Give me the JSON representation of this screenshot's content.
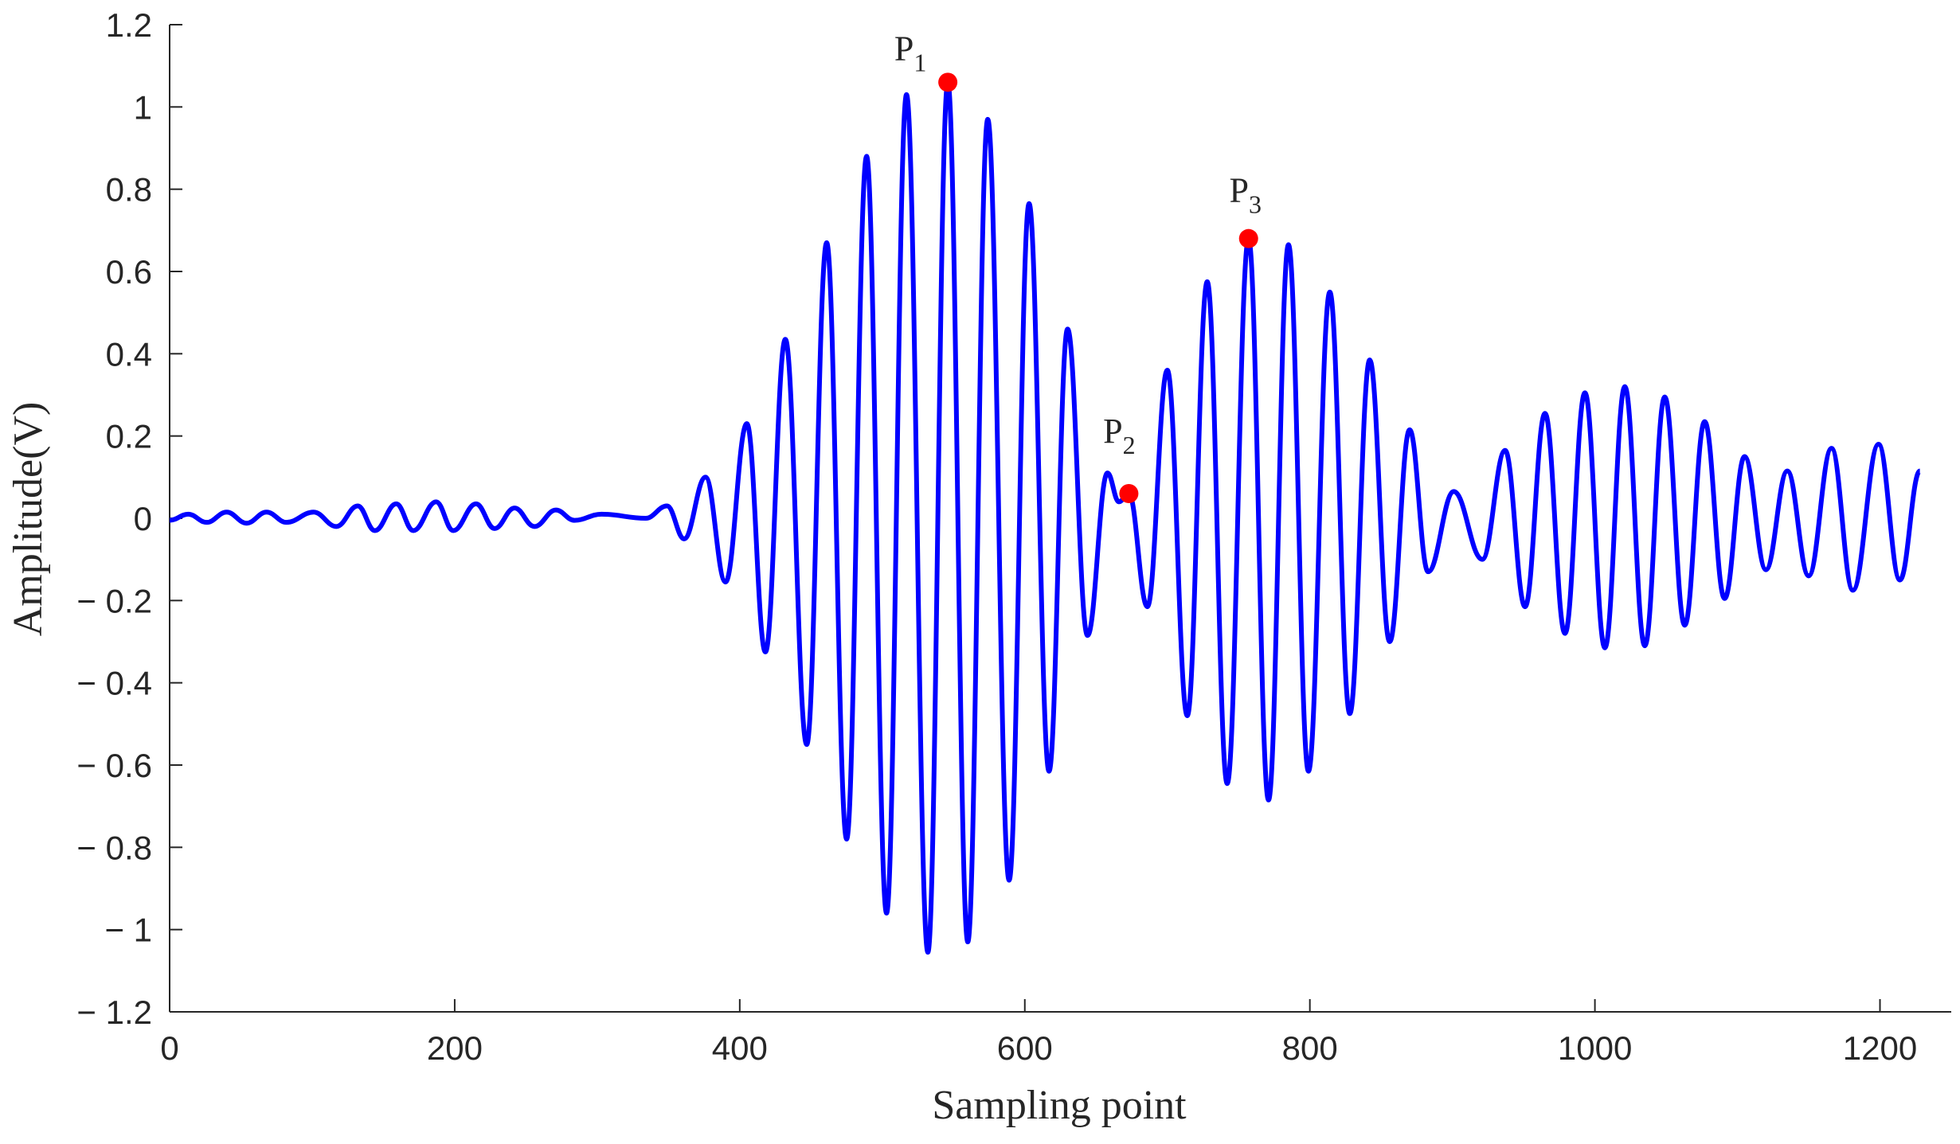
{
  "chart_data": {
    "type": "line",
    "x_label": "Sampling point",
    "y_label": "Amplitude(V)",
    "x": [
      0,
      13,
      26,
      40,
      54,
      68,
      82,
      101,
      117,
      132,
      144,
      159,
      171,
      187,
      199,
      215,
      228,
      242,
      256,
      271,
      284,
      303,
      334,
      349,
      361,
      376,
      390,
      405,
      418,
      432,
      447,
      461,
      475,
      489,
      503,
      517,
      532,
      546,
      560,
      574,
      589,
      603,
      617,
      630,
      644,
      658,
      666,
      673,
      686,
      700,
      714,
      728,
      742,
      757,
      771,
      785,
      799,
      814,
      828,
      842,
      856,
      870,
      883,
      901,
      921,
      937,
      951,
      965,
      979,
      993,
      1007,
      1021,
      1035,
      1049,
      1063,
      1077,
      1091,
      1105,
      1120,
      1135,
      1150,
      1166,
      1181,
      1199,
      1214,
      1228
    ],
    "series": [
      {
        "color": "#0000ff",
        "values": [
          -0.005,
          0.01,
          -0.01,
          0.015,
          -0.012,
          0.015,
          -0.01,
          0.015,
          -0.02,
          0.03,
          -0.03,
          0.035,
          -0.03,
          0.04,
          -0.03,
          0.035,
          -0.025,
          0.025,
          -0.02,
          0.02,
          -0.005,
          0.01,
          0,
          0.03,
          -0.05,
          0.1,
          -0.155,
          0.23,
          -0.325,
          0.435,
          -0.55,
          0.67,
          -0.78,
          0.88,
          -0.96,
          1.03,
          -1.055,
          1.06,
          -1.03,
          0.97,
          -0.88,
          0.765,
          -0.615,
          0.46,
          -0.285,
          0.11,
          0.04,
          0.06,
          -0.215,
          0.36,
          -0.48,
          0.575,
          -0.645,
          0.68,
          -0.685,
          0.665,
          -0.615,
          0.55,
          -0.475,
          0.385,
          -0.3,
          0.215,
          -0.13,
          0.065,
          -0.1,
          0.165,
          -0.215,
          0.255,
          -0.28,
          0.305,
          -0.315,
          0.32,
          -0.31,
          0.295,
          -0.26,
          0.235,
          -0.195,
          0.15,
          -0.125,
          0.115,
          -0.14,
          0.17,
          -0.175,
          0.18,
          -0.15,
          0.115
        ]
      }
    ],
    "markers": [
      {
        "label": "P",
        "subscript": "1",
        "x": 546,
        "y": 1.06,
        "color": "#ff0000"
      },
      {
        "label": "P",
        "subscript": "2",
        "x": 673,
        "y": 0.06,
        "color": "#ff0000"
      },
      {
        "label": "P",
        "subscript": "3",
        "x": 757,
        "y": 0.68,
        "color": "#ff0000"
      }
    ],
    "xlim": [
      0,
      1250
    ],
    "xticks": [
      0,
      200,
      400,
      600,
      800,
      1000,
      1200
    ],
    "ylim": [
      -1.2,
      1.2
    ],
    "yticks": [
      {
        "value": -1.2,
        "label": "− 1.2"
      },
      {
        "value": -1,
        "label": "− 1"
      },
      {
        "value": -0.8,
        "label": "− 0.8"
      },
      {
        "value": -0.6,
        "label": "− 0.6"
      },
      {
        "value": -0.4,
        "label": "− 0.4"
      },
      {
        "value": -0.2,
        "label": "− 0.2"
      },
      0,
      0.2,
      0.4,
      0.6,
      0.8,
      1,
      1.2
    ],
    "grid": false
  }
}
